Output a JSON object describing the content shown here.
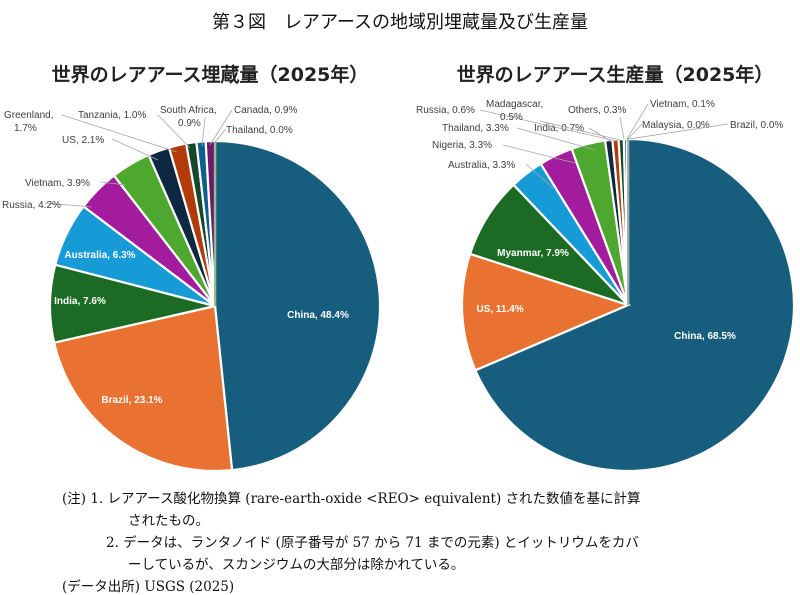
{
  "figure_title": "第３図　レアアースの地域別埋蔵量及び生産量",
  "notes": {
    "line1": "(注) 1. レアアース酸化物換算 (rare-earth-oxide <REO> equivalent) された数値を基に計算",
    "line2": "されたもの。",
    "line3": "2. データは、ランタノイド (原子番号が 57 から 71 までの元素) とイットリウムをカバ",
    "line4": "ーしているが、スカンジウムの大部分は除かれている。",
    "source": "(データ出所) USGS (2025)"
  },
  "chart_data": [
    {
      "type": "pie",
      "title": "世界のレアアース埋蔵量（2025年）",
      "slices": [
        {
          "name": "China",
          "value": 48.4,
          "label": "China, 48.4%",
          "color": "#175d7e"
        },
        {
          "name": "Brazil",
          "value": 23.1,
          "label": "Brazil, 23.1%",
          "color": "#e97132"
        },
        {
          "name": "India",
          "value": 7.6,
          "label": "India, 7.6%",
          "color": "#1b6b24"
        },
        {
          "name": "Australia",
          "value": 6.3,
          "label": "Australia, 6.3%",
          "color": "#169bd6"
        },
        {
          "name": "Russia",
          "value": 4.2,
          "label": "Russia, 4.2%",
          "color": "#a31c9e"
        },
        {
          "name": "Vietnam",
          "value": 3.9,
          "label": "Vietnam, 3.9%",
          "color": "#4ea72e"
        },
        {
          "name": "US",
          "value": 2.1,
          "label": "US, 2.1%",
          "color": "#0e2841"
        },
        {
          "name": "Greenland",
          "value": 1.7,
          "label": "Greenland, 1.7%",
          "color": "#b33b0a"
        },
        {
          "name": "Tanzania",
          "value": 1.0,
          "label": "Tanzania, 1.0%",
          "color": "#16472a"
        },
        {
          "name": "South Africa",
          "value": 0.9,
          "label": "South Africa, 0.9%",
          "color": "#0f5f8c"
        },
        {
          "name": "Canada",
          "value": 0.9,
          "label": "Canada, 0.9%",
          "color": "#6c1b6a"
        },
        {
          "name": "Thailand",
          "value": 0.0,
          "label": "Thailand, 0.0%",
          "color": "#2a7a1c"
        }
      ]
    },
    {
      "type": "pie",
      "title": "世界のレアアース生産量（2025年）",
      "slices": [
        {
          "name": "China",
          "value": 68.5,
          "label": "China, 68.5%",
          "color": "#175d7e"
        },
        {
          "name": "US",
          "value": 11.4,
          "label": "US, 11.4%",
          "color": "#e97132"
        },
        {
          "name": "Myanmar",
          "value": 7.9,
          "label": "Myanmar, 7.9%",
          "color": "#1b6b24"
        },
        {
          "name": "Australia",
          "value": 3.3,
          "label": "Australia, 3.3%",
          "color": "#169bd6"
        },
        {
          "name": "Nigeria",
          "value": 3.3,
          "label": "Nigeria, 3.3%",
          "color": "#a31c9e"
        },
        {
          "name": "Thailand",
          "value": 3.3,
          "label": "Thailand, 3.3%",
          "color": "#4ea72e"
        },
        {
          "name": "India",
          "value": 0.7,
          "label": "India, 0.7%",
          "color": "#0e2841"
        },
        {
          "name": "Russia",
          "value": 0.6,
          "label": "Russia, 0.6%",
          "color": "#b33b0a"
        },
        {
          "name": "Madagascar",
          "value": 0.5,
          "label": "Madagascar, 0.5%",
          "color": "#16472a"
        },
        {
          "name": "Others",
          "value": 0.3,
          "label": "Others, 0.3%",
          "color": "#0f5f8c"
        },
        {
          "name": "Vietnam",
          "value": 0.1,
          "label": "Vietnam, 0.1%",
          "color": "#6c1b6a"
        },
        {
          "name": "Malaysia",
          "value": 0.0,
          "label": "Malaysia, 0.0%",
          "color": "#2a7a1c"
        },
        {
          "name": "Brazil",
          "value": 0.0,
          "label": "Brazil, 0.0%",
          "color": "#5a5a5a"
        }
      ]
    }
  ]
}
